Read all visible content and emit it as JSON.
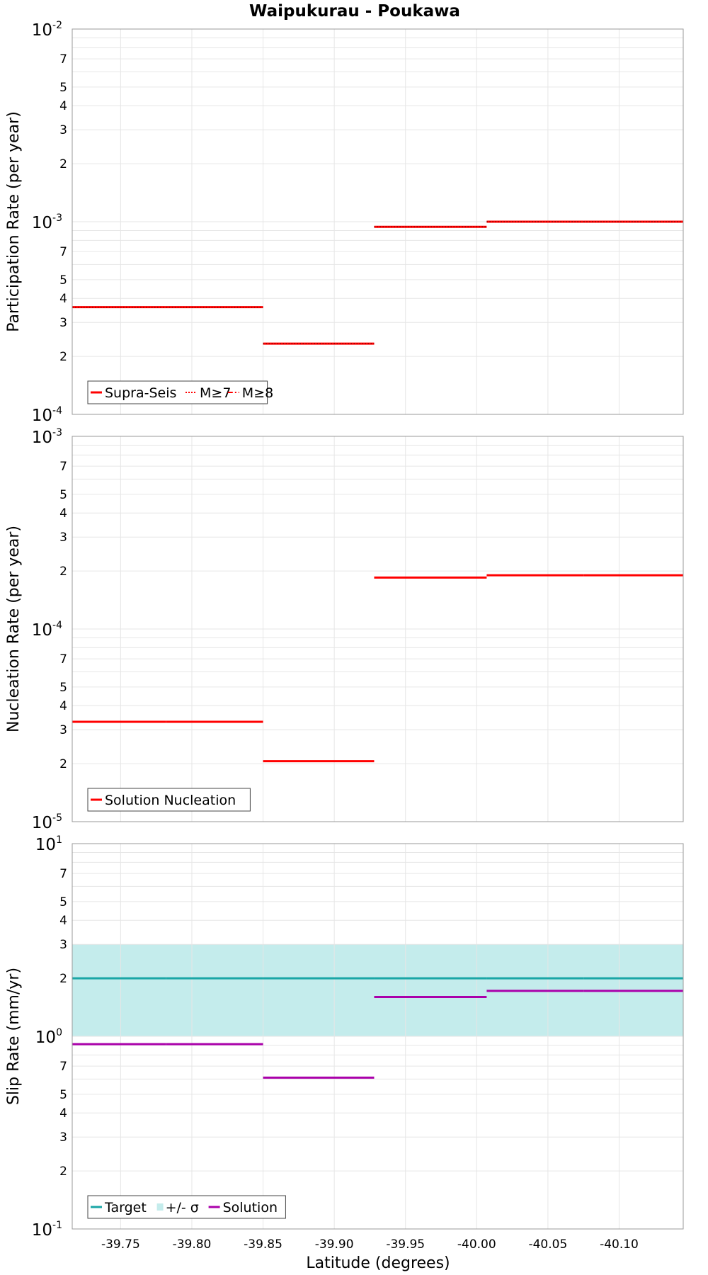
{
  "chart_data": {
    "title": "Waipukurau - Poukawa",
    "xlabel": "Latitude (degrees)",
    "xlim": [
      -39.716,
      -40.145
    ],
    "x_ticks": [
      {
        "value": -39.75,
        "label": "-39.75"
      },
      {
        "value": -39.8,
        "label": "-39.80"
      },
      {
        "value": -39.85,
        "label": "-39.85"
      },
      {
        "value": -39.9,
        "label": "-39.90"
      },
      {
        "value": -39.95,
        "label": "-39.95"
      },
      {
        "value": -40.0,
        "label": "-40.00"
      },
      {
        "value": -40.05,
        "label": "-40.05"
      },
      {
        "value": -40.1,
        "label": "-40.10"
      }
    ],
    "panels": [
      {
        "id": "participation",
        "type": "line",
        "ylabel": "Participation Rate (per year)",
        "yscale": "log",
        "ylim": [
          0.0001,
          0.01
        ],
        "y_decades": [
          {
            "base": "10",
            "exp": "-4"
          },
          {
            "base": "10",
            "exp": "-3"
          },
          {
            "base": "10",
            "exp": "-2"
          }
        ],
        "y_minor_labels": [
          "2",
          "3",
          "4",
          "5",
          "7"
        ],
        "legend": [
          {
            "label": "Supra-Seis",
            "color": "#ff0000",
            "style": "solid"
          },
          {
            "label": "M≥7",
            "color": "#ff0000",
            "style": "dotted"
          },
          {
            "label": "M≥8",
            "color": "#ff0000",
            "style": "dashdot"
          }
        ],
        "series": [
          {
            "name": "Supra-Seis",
            "color": "#ff0000",
            "segments": [
              [
                -39.716,
                -39.782,
                0.00036
              ],
              [
                -39.782,
                -39.85,
                0.00036
              ],
              [
                -39.85,
                -39.928,
                0.000233
              ],
              [
                -39.928,
                -40.007,
                0.00094
              ],
              [
                -40.007,
                -40.075,
                0.001
              ],
              [
                -40.075,
                -40.145,
                0.001
              ]
            ]
          },
          {
            "name": "M≥7",
            "color": "#ff0000",
            "segments": [
              [
                -39.716,
                -39.782,
                0.00036
              ],
              [
                -39.782,
                -39.85,
                0.00036
              ],
              [
                -39.85,
                -39.928,
                0.000233
              ],
              [
                -39.928,
                -40.007,
                0.00094
              ],
              [
                -40.007,
                -40.075,
                0.001
              ],
              [
                -40.075,
                -40.145,
                0.001
              ]
            ]
          }
        ]
      },
      {
        "id": "nucleation",
        "type": "line",
        "ylabel": "Nucleation Rate (per year)",
        "yscale": "log",
        "ylim": [
          1e-05,
          0.001
        ],
        "y_decades": [
          {
            "base": "10",
            "exp": "-5"
          },
          {
            "base": "10",
            "exp": "-4"
          },
          {
            "base": "10",
            "exp": "-3"
          }
        ],
        "y_minor_labels": [
          "2",
          "3",
          "4",
          "5",
          "7"
        ],
        "legend": [
          {
            "label": "Solution Nucleation",
            "color": "#ff0000",
            "style": "solid"
          }
        ],
        "series": [
          {
            "name": "Solution Nucleation",
            "color": "#ff0000",
            "segments": [
              [
                -39.716,
                -39.782,
                3.3e-05
              ],
              [
                -39.782,
                -39.85,
                3.3e-05
              ],
              [
                -39.85,
                -39.928,
                2.06e-05
              ],
              [
                -39.928,
                -40.007,
                0.000185
              ],
              [
                -40.007,
                -40.075,
                0.00019
              ],
              [
                -40.075,
                -40.145,
                0.00019
              ]
            ]
          }
        ]
      },
      {
        "id": "slip",
        "type": "line",
        "ylabel": "Slip Rate (mm/yr)",
        "yscale": "log",
        "ylim": [
          0.1,
          10
        ],
        "y_decades": [
          {
            "base": "10",
            "exp": "-1"
          },
          {
            "base": "10",
            "exp": "0"
          },
          {
            "base": "10",
            "exp": "1"
          }
        ],
        "y_minor_labels": [
          "2",
          "3",
          "4",
          "5",
          "7"
        ],
        "legend": [
          {
            "label": "Target",
            "color": "#1aa6a6",
            "style": "solid"
          },
          {
            "label": "+/- σ",
            "color": "#c4ecec",
            "style": "box"
          },
          {
            "label": "Solution",
            "color": "#aa00aa",
            "style": "solid"
          }
        ],
        "band": {
          "name": "+/- σ",
          "color": "#c4ecec",
          "low": 1.0,
          "high": 3.0
        },
        "series": [
          {
            "name": "Target",
            "color": "#1aa6a6",
            "segments": [
              [
                -39.716,
                -39.782,
                2.0
              ],
              [
                -39.782,
                -39.85,
                2.0
              ],
              [
                -39.85,
                -39.928,
                2.0
              ],
              [
                -39.928,
                -40.007,
                2.0
              ],
              [
                -40.007,
                -40.075,
                2.0
              ],
              [
                -40.075,
                -40.145,
                2.0
              ]
            ]
          },
          {
            "name": "Solution",
            "color": "#aa00aa",
            "segments": [
              [
                -39.716,
                -39.782,
                0.91
              ],
              [
                -39.782,
                -39.85,
                0.91
              ],
              [
                -39.85,
                -39.928,
                0.61
              ],
              [
                -39.928,
                -40.007,
                1.6
              ],
              [
                -40.007,
                -40.075,
                1.72
              ],
              [
                -40.075,
                -40.145,
                1.72
              ]
            ]
          }
        ]
      }
    ]
  }
}
